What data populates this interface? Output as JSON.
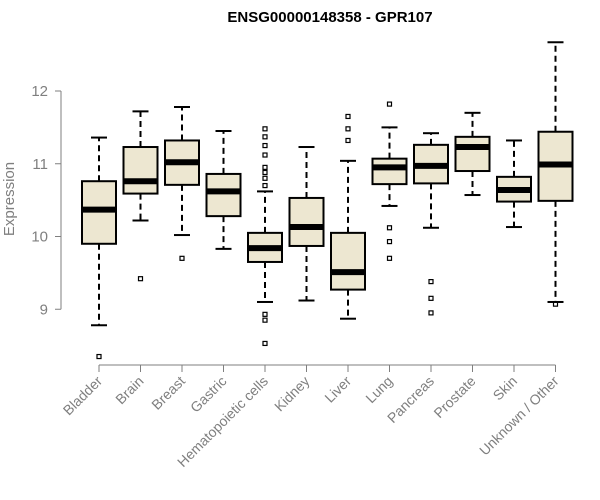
{
  "chart_data": {
    "type": "box",
    "title": "ENSG00000148358 - GPR107",
    "xlabel": "",
    "ylabel": "Expression",
    "ylim": [
      8.2,
      12.75
    ],
    "yticks": [
      9,
      10,
      11,
      12
    ],
    "box_fill": "#ede7d1",
    "median_color": "#000000",
    "axis_color": "#7f7f7f",
    "categories": [
      "Bladder",
      "Brain",
      "Breast",
      "Gastric",
      "Hematopoietic cells",
      "Kidney",
      "Liver",
      "Lung",
      "Pancreas",
      "Prostate",
      "Skin",
      "Unknown / Other"
    ],
    "boxes": [
      {
        "name": "Bladder",
        "whisker_low": 8.78,
        "q1": 9.9,
        "median": 10.37,
        "q3": 10.76,
        "whisker_high": 11.36,
        "outliers": [
          8.35
        ]
      },
      {
        "name": "Brain",
        "whisker_low": 10.22,
        "q1": 10.59,
        "median": 10.76,
        "q3": 11.23,
        "whisker_high": 11.72,
        "outliers": [
          9.42
        ]
      },
      {
        "name": "Breast",
        "whisker_low": 10.02,
        "q1": 10.71,
        "median": 11.02,
        "q3": 11.32,
        "whisker_high": 11.78,
        "outliers": [
          9.7
        ]
      },
      {
        "name": "Gastric",
        "whisker_low": 9.83,
        "q1": 10.28,
        "median": 10.62,
        "q3": 10.86,
        "whisker_high": 11.45,
        "outliers": []
      },
      {
        "name": "Hematopoietic cells",
        "whisker_low": 9.1,
        "q1": 9.65,
        "median": 9.84,
        "q3": 10.05,
        "whisker_high": 10.62,
        "outliers": [
          8.53,
          8.85,
          8.93,
          10.7,
          10.8,
          10.88,
          10.95,
          11.12,
          11.25,
          11.37,
          11.48
        ]
      },
      {
        "name": "Kidney",
        "whisker_low": 9.12,
        "q1": 9.87,
        "median": 10.13,
        "q3": 10.53,
        "whisker_high": 11.23,
        "outliers": []
      },
      {
        "name": "Liver",
        "whisker_low": 8.87,
        "q1": 9.27,
        "median": 9.51,
        "q3": 10.05,
        "whisker_high": 11.04,
        "outliers": [
          11.32,
          11.48,
          11.65
        ]
      },
      {
        "name": "Lung",
        "whisker_low": 10.42,
        "q1": 10.72,
        "median": 10.95,
        "q3": 11.07,
        "whisker_high": 11.5,
        "outliers": [
          9.7,
          9.93,
          10.12,
          11.82
        ]
      },
      {
        "name": "Pancreas",
        "whisker_low": 10.12,
        "q1": 10.73,
        "median": 10.97,
        "q3": 11.26,
        "whisker_high": 11.42,
        "outliers": [
          8.95,
          9.15,
          9.38
        ]
      },
      {
        "name": "Prostate",
        "whisker_low": 10.57,
        "q1": 10.9,
        "median": 11.23,
        "q3": 11.37,
        "whisker_high": 11.7,
        "outliers": []
      },
      {
        "name": "Skin",
        "whisker_low": 10.13,
        "q1": 10.48,
        "median": 10.64,
        "q3": 10.82,
        "whisker_high": 11.32,
        "outliers": []
      },
      {
        "name": "Unknown / Other",
        "whisker_low": 9.1,
        "q1": 10.49,
        "median": 10.99,
        "q3": 11.44,
        "whisker_high": 12.67,
        "outliers": [
          9.07
        ]
      }
    ]
  }
}
